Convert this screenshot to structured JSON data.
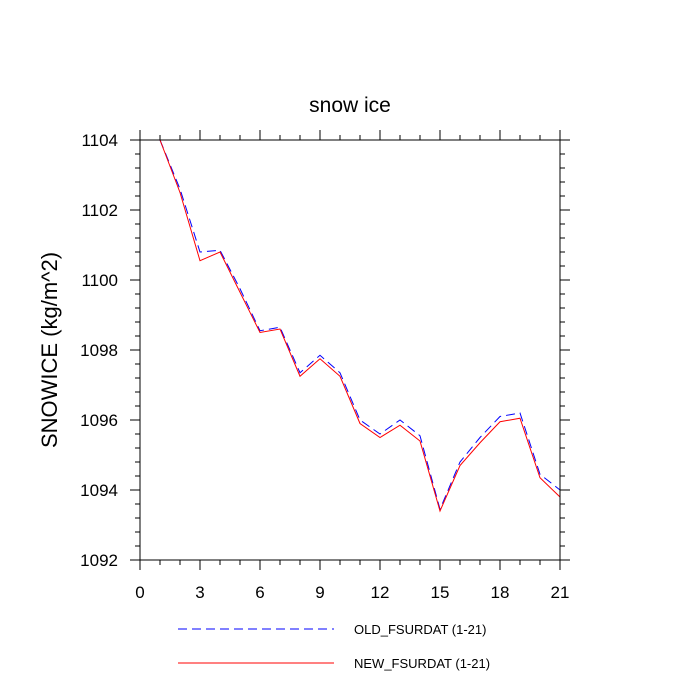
{
  "chart_data": {
    "type": "line",
    "title": "snow ice",
    "xlabel": "",
    "ylabel": "SNOWICE  (kg/m^2)",
    "xlim": [
      0,
      21
    ],
    "ylim": [
      1092,
      1104
    ],
    "xticks": [
      0,
      3,
      6,
      9,
      12,
      15,
      18,
      21
    ],
    "yticks": [
      1092,
      1094,
      1096,
      1098,
      1100,
      1102,
      1104
    ],
    "xtick_labels": [
      "0",
      "3",
      "6",
      "9",
      "12",
      "15",
      "18",
      "21"
    ],
    "ytick_labels": [
      "1092",
      "1094",
      "1096",
      "1098",
      "1100",
      "1102",
      "1104"
    ],
    "grid": false,
    "legend_position": "bottom-center",
    "x": [
      1,
      2,
      3,
      4,
      5,
      6,
      7,
      8,
      9,
      10,
      11,
      12,
      13,
      14,
      15,
      16,
      17,
      18,
      19,
      20,
      21
    ],
    "series": [
      {
        "name": "OLD_FSURDAT (1-21)",
        "color": "#0000ff",
        "style": "dashed",
        "values": [
          1104.0,
          1102.6,
          1100.8,
          1100.85,
          1099.75,
          1098.55,
          1098.65,
          1097.35,
          1097.85,
          1097.35,
          1096.0,
          1095.6,
          1096.0,
          1095.55,
          1093.45,
          1094.8,
          1095.5,
          1096.1,
          1096.2,
          1094.45,
          1094.0
        ]
      },
      {
        "name": "NEW_FSURDAT (1-21)",
        "color": "#ff0000",
        "style": "solid",
        "values": [
          1104.0,
          1102.5,
          1100.55,
          1100.8,
          1099.65,
          1098.5,
          1098.6,
          1097.25,
          1097.75,
          1097.25,
          1095.9,
          1095.5,
          1095.85,
          1095.4,
          1093.4,
          1094.7,
          1095.35,
          1095.95,
          1096.05,
          1094.35,
          1093.8
        ]
      }
    ]
  }
}
